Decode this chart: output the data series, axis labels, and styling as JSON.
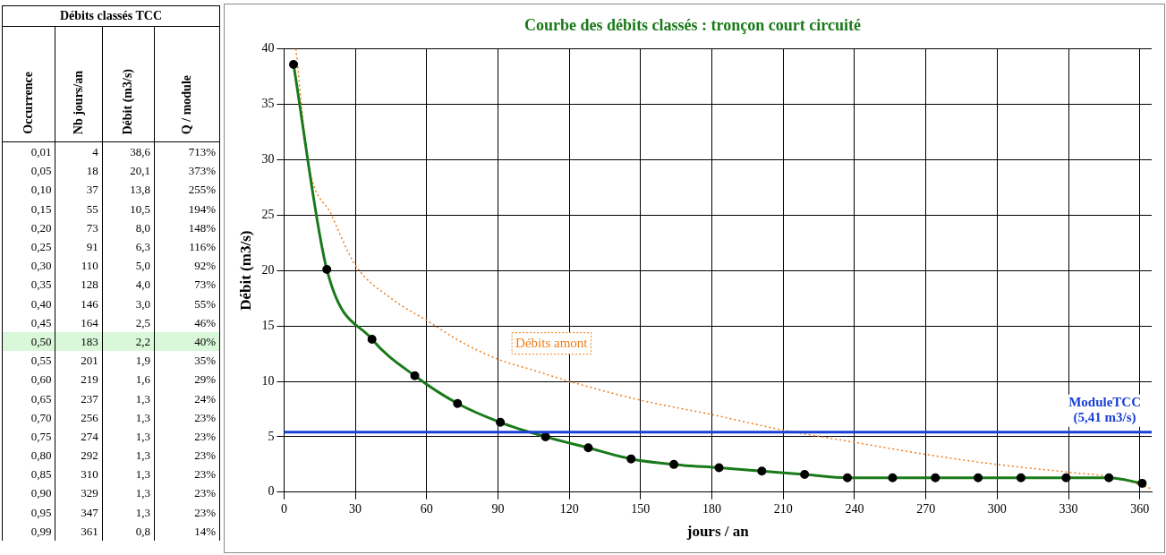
{
  "chart_data": [
    {
      "type": "heatmap",
      "title": "Débits classés TCC",
      "ylabel": "Occurrence",
      "categories": [
        "Nb jours/an",
        "Débit (m3/s)",
        "Q / module"
      ],
      "y_categories": [
        "0,01",
        "0,05",
        "0,10",
        "0,15",
        "0,20",
        "0,25",
        "0,30",
        "0,35",
        "0,40",
        "0,45",
        "0,50",
        "0,55",
        "0,60",
        "0,65",
        "0,70",
        "0,75",
        "0,80",
        "0,85",
        "0,90",
        "0,95",
        "0,99"
      ],
      "cells": [
        [
          4,
          38.6,
          713
        ],
        [
          18,
          20.1,
          373
        ],
        [
          37,
          13.8,
          255
        ],
        [
          55,
          10.5,
          194
        ],
        [
          73,
          8.0,
          148
        ],
        [
          91,
          6.3,
          116
        ],
        [
          110,
          5.0,
          92
        ],
        [
          128,
          4.0,
          73
        ],
        [
          146,
          3.0,
          55
        ],
        [
          164,
          2.5,
          46
        ],
        [
          183,
          2.2,
          40
        ],
        [
          201,
          1.9,
          35
        ],
        [
          219,
          1.6,
          29
        ],
        [
          237,
          1.3,
          24
        ],
        [
          256,
          1.3,
          23
        ],
        [
          274,
          1.3,
          23
        ],
        [
          292,
          1.3,
          23
        ],
        [
          310,
          1.3,
          23
        ],
        [
          329,
          1.3,
          23
        ],
        [
          347,
          1.3,
          23
        ],
        [
          361,
          0.8,
          14
        ]
      ],
      "cell_labels": [
        [
          "4",
          "38,6",
          "713%"
        ],
        [
          "18",
          "20,1",
          "373%"
        ],
        [
          "37",
          "13,8",
          "255%"
        ],
        [
          "55",
          "10,5",
          "194%"
        ],
        [
          "73",
          "8,0",
          "148%"
        ],
        [
          "91",
          "6,3",
          "116%"
        ],
        [
          "110",
          "5,0",
          "92%"
        ],
        [
          "128",
          "4,0",
          "73%"
        ],
        [
          "146",
          "3,0",
          "55%"
        ],
        [
          "164",
          "2,5",
          "46%"
        ],
        [
          "183",
          "2,2",
          "40%"
        ],
        [
          "201",
          "1,9",
          "35%"
        ],
        [
          "219",
          "1,6",
          "29%"
        ],
        [
          "237",
          "1,3",
          "24%"
        ],
        [
          "256",
          "1,3",
          "23%"
        ],
        [
          "274",
          "1,3",
          "23%"
        ],
        [
          "292",
          "1,3",
          "23%"
        ],
        [
          "310",
          "1,3",
          "23%"
        ],
        [
          "329",
          "1,3",
          "23%"
        ],
        [
          "347",
          "1,3",
          "23%"
        ],
        [
          "361",
          "0,8",
          "14%"
        ]
      ],
      "bands": [
        {
          "axis": "y",
          "from": "0,50",
          "to": "0,50",
          "color": "#d9f7d9"
        }
      ]
    },
    {
      "type": "line",
      "title": "Courbe des débits classés : tronçon court circuité",
      "xlabel": "jours / an",
      "ylabel": "Débit (m3/s)",
      "xlim": [
        0,
        365
      ],
      "xticks": [
        0,
        30,
        60,
        90,
        120,
        150,
        180,
        210,
        240,
        270,
        300,
        330,
        360
      ],
      "ylim": [
        0,
        40
      ],
      "yticks": [
        0,
        5,
        10,
        15,
        20,
        25,
        30,
        35,
        40
      ],
      "grid": true,
      "series": [
        {
          "color": "#1a7a1a",
          "marker": "circle",
          "line_style": "solid",
          "x": [
            4,
            18,
            37,
            55,
            73,
            91,
            110,
            128,
            146,
            164,
            183,
            201,
            219,
            237,
            256,
            274,
            292,
            310,
            329,
            347,
            361
          ],
          "values": [
            38.6,
            20.1,
            13.8,
            10.5,
            8.0,
            6.3,
            5.0,
            4.0,
            3.0,
            2.5,
            2.2,
            1.9,
            1.6,
            1.3,
            1.3,
            1.3,
            1.3,
            1.3,
            1.3,
            1.3,
            0.8
          ]
        },
        {
          "name": "Débits amont",
          "color": "#f07d1a",
          "marker": "none",
          "line_style": "dotted",
          "x": [
            5,
            10,
            20,
            30,
            45,
            60,
            75,
            90,
            105,
            120,
            150,
            180,
            210,
            240,
            270,
            300,
            330,
            350,
            365
          ],
          "values": [
            40,
            30,
            25,
            20.5,
            17.5,
            15.5,
            13.5,
            12,
            11,
            10,
            8.3,
            7,
            5.6,
            4.5,
            3.4,
            2.5,
            1.8,
            1.3,
            0.3
          ]
        }
      ],
      "ref_lines": [
        {
          "axis": "y",
          "value": 5.41,
          "label": "ModuleTCC\n(5,41 m3/s)",
          "color": "#1a3fd6"
        }
      ]
    }
  ]
}
